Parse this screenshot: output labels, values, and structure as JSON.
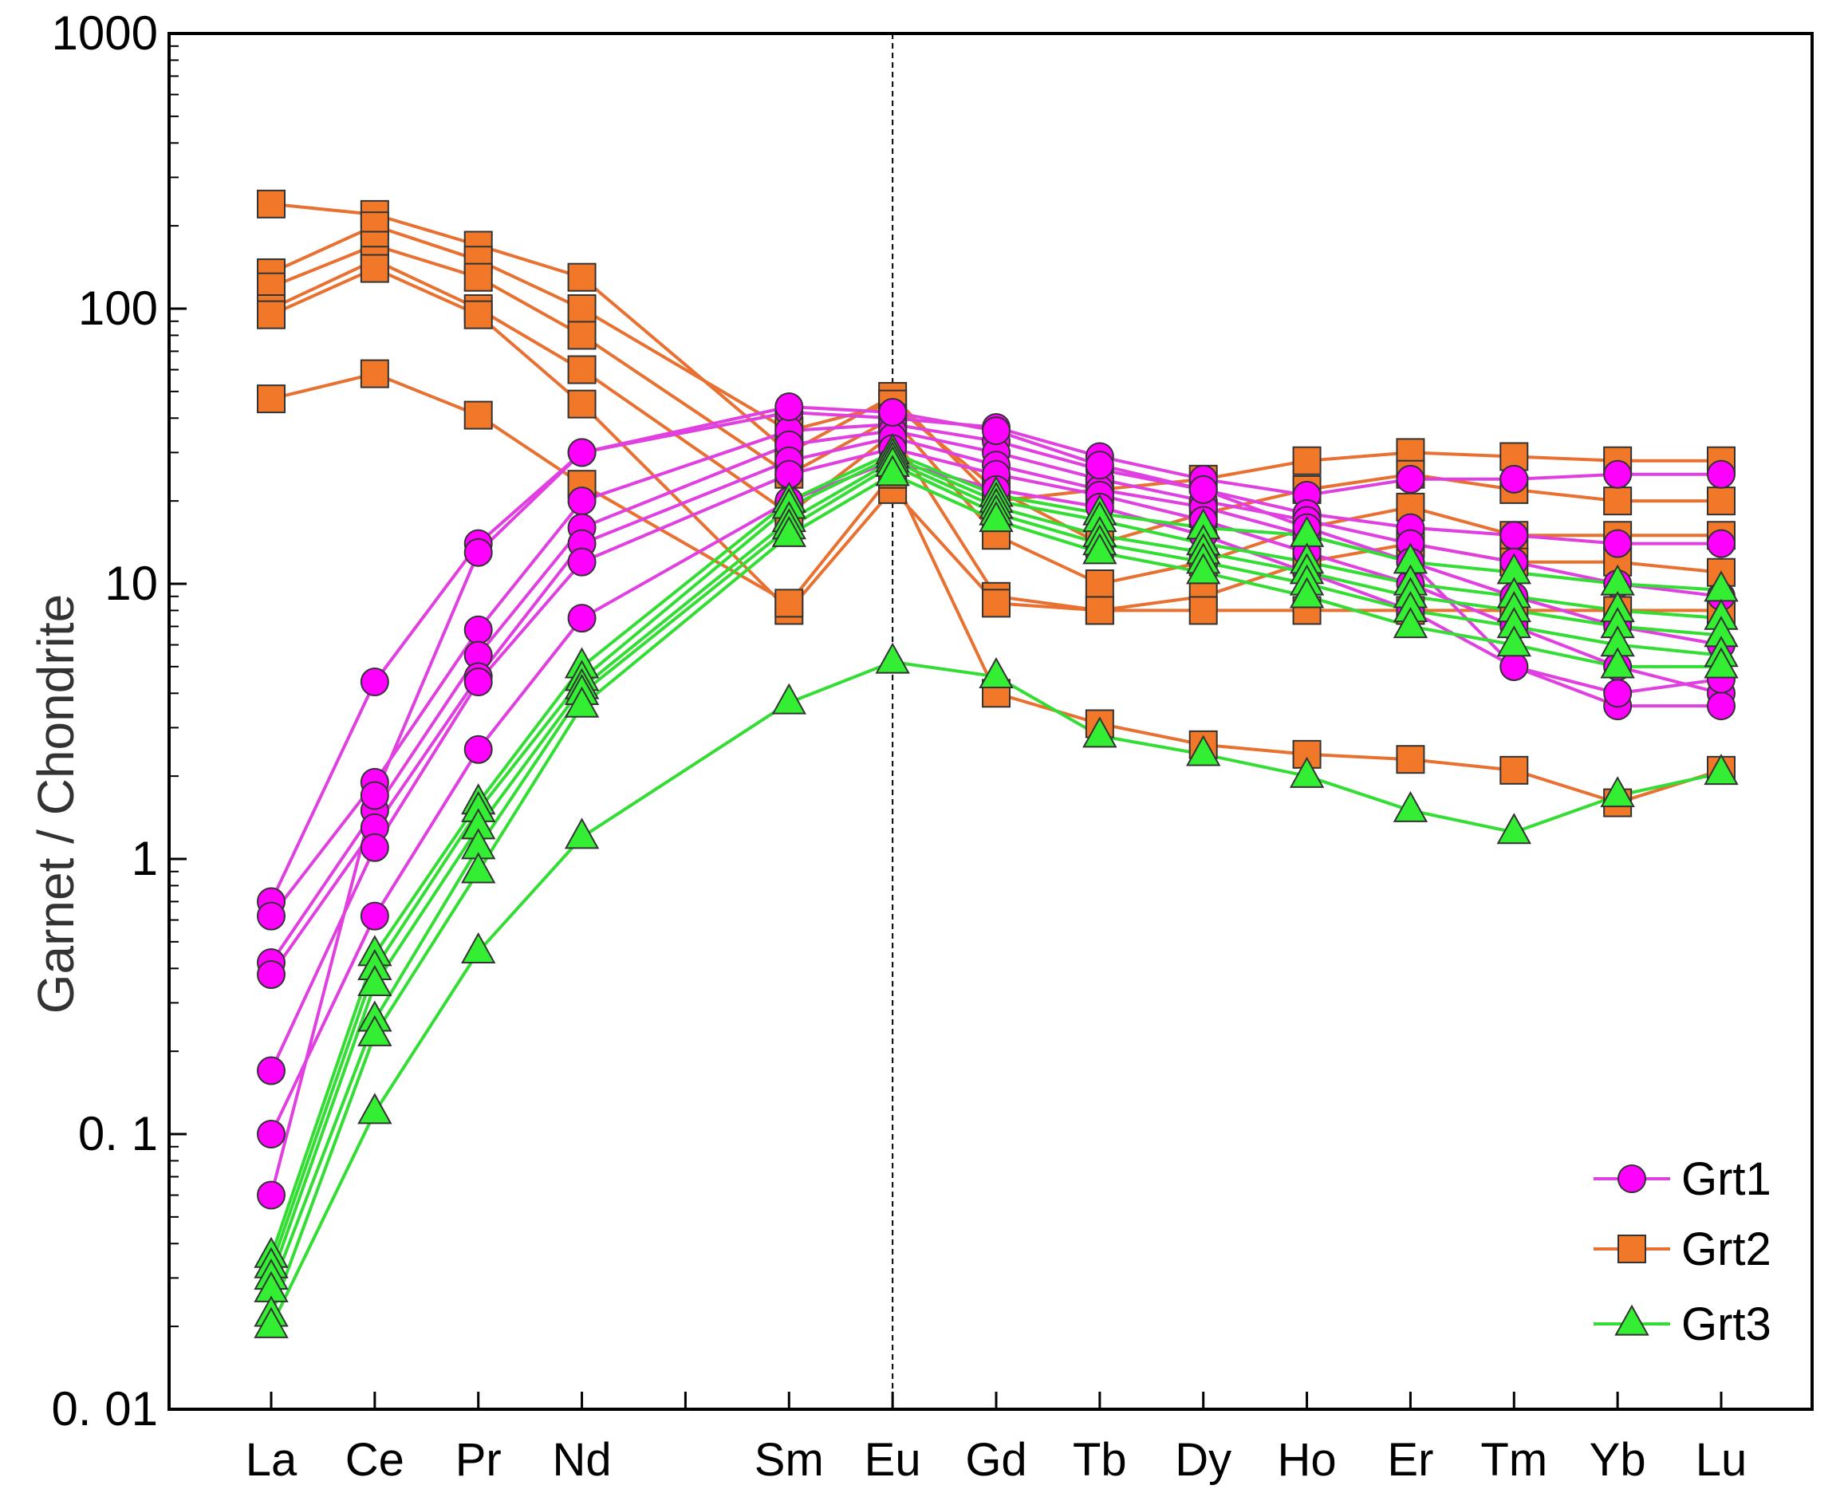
{
  "chart_data": {
    "type": "line",
    "title": "",
    "xlabel": "",
    "ylabel": "Garnet / Chondrite",
    "y_scale": "log",
    "ylim": [
      0.01,
      1000
    ],
    "y_ticks": [
      {
        "value": 1000,
        "label": "1000"
      },
      {
        "value": 100,
        "label": "100"
      },
      {
        "value": 10,
        "label": "10"
      },
      {
        "value": 1,
        "label": "1"
      },
      {
        "value": 0.1,
        "label": "0. 1"
      },
      {
        "value": 0.01,
        "label": "0. 01"
      }
    ],
    "x_range": [
      0,
      15
    ],
    "x_ticks": [
      {
        "pos": 1,
        "label": "La"
      },
      {
        "pos": 2,
        "label": "Ce"
      },
      {
        "pos": 3,
        "label": "Pr"
      },
      {
        "pos": 4,
        "label": "Nd"
      },
      {
        "pos": 6,
        "label": "Sm"
      },
      {
        "pos": 7,
        "label": "Eu"
      },
      {
        "pos": 8,
        "label": "Gd"
      },
      {
        "pos": 9,
        "label": "Tb"
      },
      {
        "pos": 10,
        "label": "Dy"
      },
      {
        "pos": 11,
        "label": "Ho"
      },
      {
        "pos": 12,
        "label": "Er"
      },
      {
        "pos": 13,
        "label": "Tm"
      },
      {
        "pos": 14,
        "label": "Yb"
      },
      {
        "pos": 15,
        "label": "Lu"
      }
    ],
    "x_minor_ticks": [
      5
    ],
    "reference_line_x": 7,
    "legend_position": "bottom-right",
    "legend": [
      {
        "name": "Grt1",
        "marker": "circle",
        "color": "#ff00ff",
        "line_color": "#e040e0"
      },
      {
        "name": "Grt2",
        "marker": "square",
        "color": "#f07828",
        "line_color": "#e87030"
      },
      {
        "name": "Grt3",
        "marker": "triangle",
        "color": "#33ee33",
        "line_color": "#33dd33"
      }
    ],
    "groups": [
      {
        "name": "Grt1",
        "marker": "circle",
        "fill": "#ff00ff",
        "line_color": "#e040e0",
        "series": [
          [
            0.7,
            4.4,
            14,
            30,
            42,
            40,
            37,
            29,
            24,
            21,
            24,
            24,
            25,
            25
          ],
          [
            0.62,
            1.9,
            6.8,
            20,
            36,
            38,
            33,
            26,
            22,
            18,
            16,
            15,
            14,
            14
          ],
          [
            0.42,
            1.5,
            5.5,
            16,
            32,
            36,
            30,
            24,
            20,
            17,
            14,
            12,
            10,
            9
          ],
          [
            0.38,
            1.3,
            4.6,
            14,
            28,
            34,
            27,
            22,
            19,
            15,
            12,
            9,
            7,
            6
          ],
          [
            0.17,
            1.1,
            4.4,
            12,
            25,
            31,
            25,
            21,
            17,
            13,
            10,
            7,
            5,
            4
          ],
          [
            0.1,
            0.62,
            2.5,
            7.5,
            20,
            28,
            22,
            19,
            15,
            11,
            8,
            5,
            3.6,
            3.6
          ],
          [
            0.06,
            1.7,
            13,
            30,
            44,
            42,
            36,
            27,
            22,
            16,
            12,
            5,
            4,
            4.5
          ]
        ]
      },
      {
        "name": "Grt2",
        "marker": "square",
        "fill": "#f07828",
        "line_color": "#e87030",
        "series": [
          [
            240,
            220,
            170,
            130,
            30,
            48,
            20,
            22,
            24,
            28,
            30,
            29,
            28,
            28
          ],
          [
            135,
            200,
            150,
            100,
            36,
            45,
            22,
            14,
            18,
            22,
            25,
            22,
            20,
            20
          ],
          [
            120,
            170,
            130,
            80,
            25,
            40,
            15,
            10,
            12,
            16,
            19,
            15,
            15,
            15
          ],
          [
            100,
            150,
            100,
            60,
            18,
            35,
            9,
            8,
            9,
            12,
            14,
            12,
            12,
            11
          ],
          [
            95,
            140,
            95,
            45,
            8,
            22,
            8.5,
            8,
            8,
            8,
            8,
            8,
            8,
            8
          ],
          [
            47,
            58,
            41,
            23,
            8.5,
            25,
            4,
            3.1,
            2.6,
            2.4,
            2.3,
            2.1,
            1.6,
            2.1
          ]
        ]
      },
      {
        "name": "Grt3",
        "marker": "triangle",
        "fill": "#33ee33",
        "line_color": "#33dd33",
        "series": [
          [
            0.036,
            0.45,
            1.6,
            5,
            20,
            30,
            21,
            18,
            16,
            15,
            12,
            11,
            10,
            9.5
          ],
          [
            0.033,
            0.4,
            1.5,
            4.5,
            19,
            29,
            20,
            17,
            14,
            12,
            10,
            9,
            8,
            7.5
          ],
          [
            0.03,
            0.35,
            1.3,
            4.2,
            17,
            28,
            19,
            15,
            13,
            11,
            9,
            8,
            7,
            6.5
          ],
          [
            0.027,
            0.26,
            1.1,
            4,
            16,
            27,
            18,
            14,
            12,
            10,
            8,
            7,
            6,
            5.5
          ],
          [
            0.022,
            0.23,
            0.9,
            3.6,
            15,
            25,
            17,
            13,
            11,
            9,
            7,
            6,
            5,
            5
          ],
          [
            0.02,
            0.12,
            0.46,
            1.2,
            3.7,
            5.2,
            4.6,
            2.8,
            2.4,
            2.0,
            1.5,
            1.25,
            1.7,
            2.05
          ]
        ]
      }
    ]
  }
}
